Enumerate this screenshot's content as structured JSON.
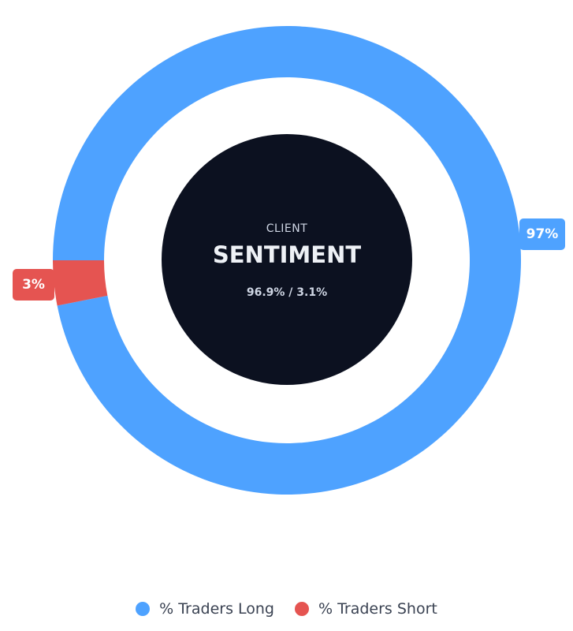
{
  "chart_data": {
    "type": "pie",
    "donut": true,
    "series": [
      {
        "name": "% Traders Long",
        "value": 96.9,
        "label": "97%",
        "color": "#4ea2ff"
      },
      {
        "name": "% Traders Short",
        "value": 3.1,
        "label": "3%",
        "color": "#e55451"
      }
    ],
    "legend_placement": "bottom"
  },
  "center": {
    "kicker": "CLIENT",
    "title": "SENTIMENT",
    "subtitle": "96.9% / 3.1%",
    "background": "#0c1120"
  }
}
